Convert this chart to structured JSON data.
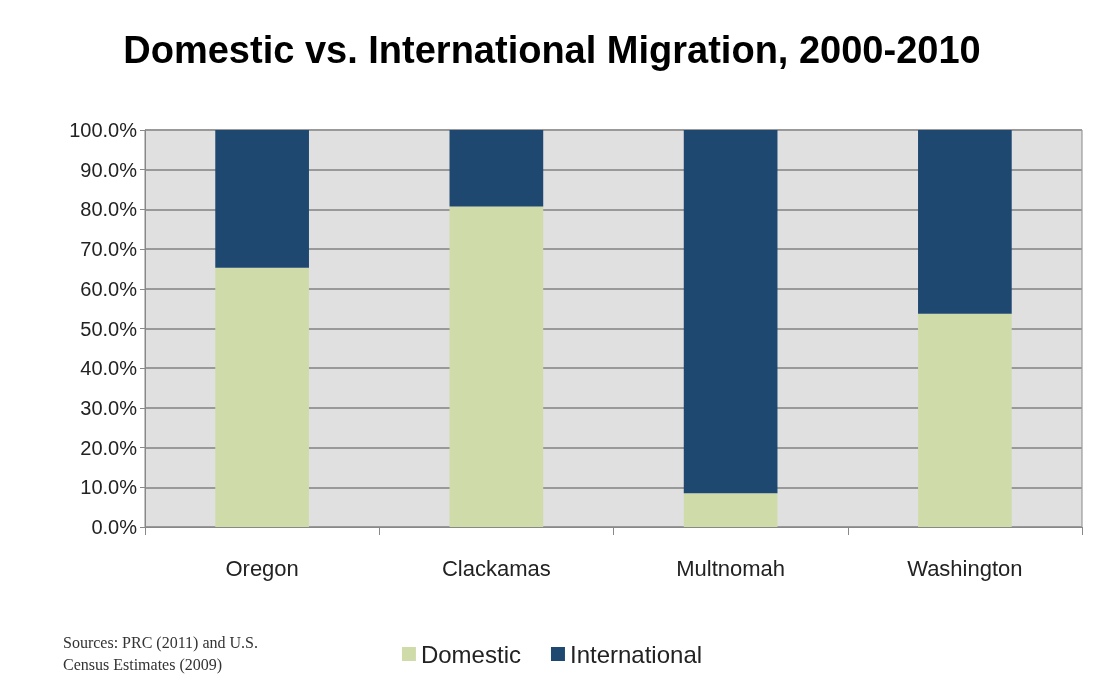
{
  "chart_data": {
    "type": "bar",
    "title": "Domestic vs. International Migration, 2000-2010",
    "categories": [
      "Oregon",
      "Clackamas",
      "Multnomah",
      "Washington"
    ],
    "series": [
      {
        "name": "Domestic",
        "color": "#cfdcaa",
        "values": [
          65.3,
          80.7,
          8.5,
          53.7
        ]
      },
      {
        "name": "International",
        "color": "#1f4871",
        "values": [
          34.7,
          19.3,
          91.5,
          46.3
        ]
      }
    ],
    "stacked": true,
    "ylim": [
      0,
      100
    ],
    "yticks": [
      {
        "value": 0,
        "label": "0.0%"
      },
      {
        "value": 10,
        "label": "10.0%"
      },
      {
        "value": 20,
        "label": "20.0%"
      },
      {
        "value": 30,
        "label": "30.0%"
      },
      {
        "value": 40,
        "label": "40.0%"
      },
      {
        "value": 50,
        "label": "50.0%"
      },
      {
        "value": 60,
        "label": "60.0%"
      },
      {
        "value": 70,
        "label": "70.0%"
      },
      {
        "value": 80,
        "label": "80.0%"
      },
      {
        "value": 90,
        "label": "90.0%"
      },
      {
        "value": 100,
        "label": "100.0%"
      }
    ],
    "grid": "y",
    "legend": "bottom",
    "annotations": [
      "Sources: PRC (2011) and U.S. Census Estimates (2009)"
    ]
  }
}
